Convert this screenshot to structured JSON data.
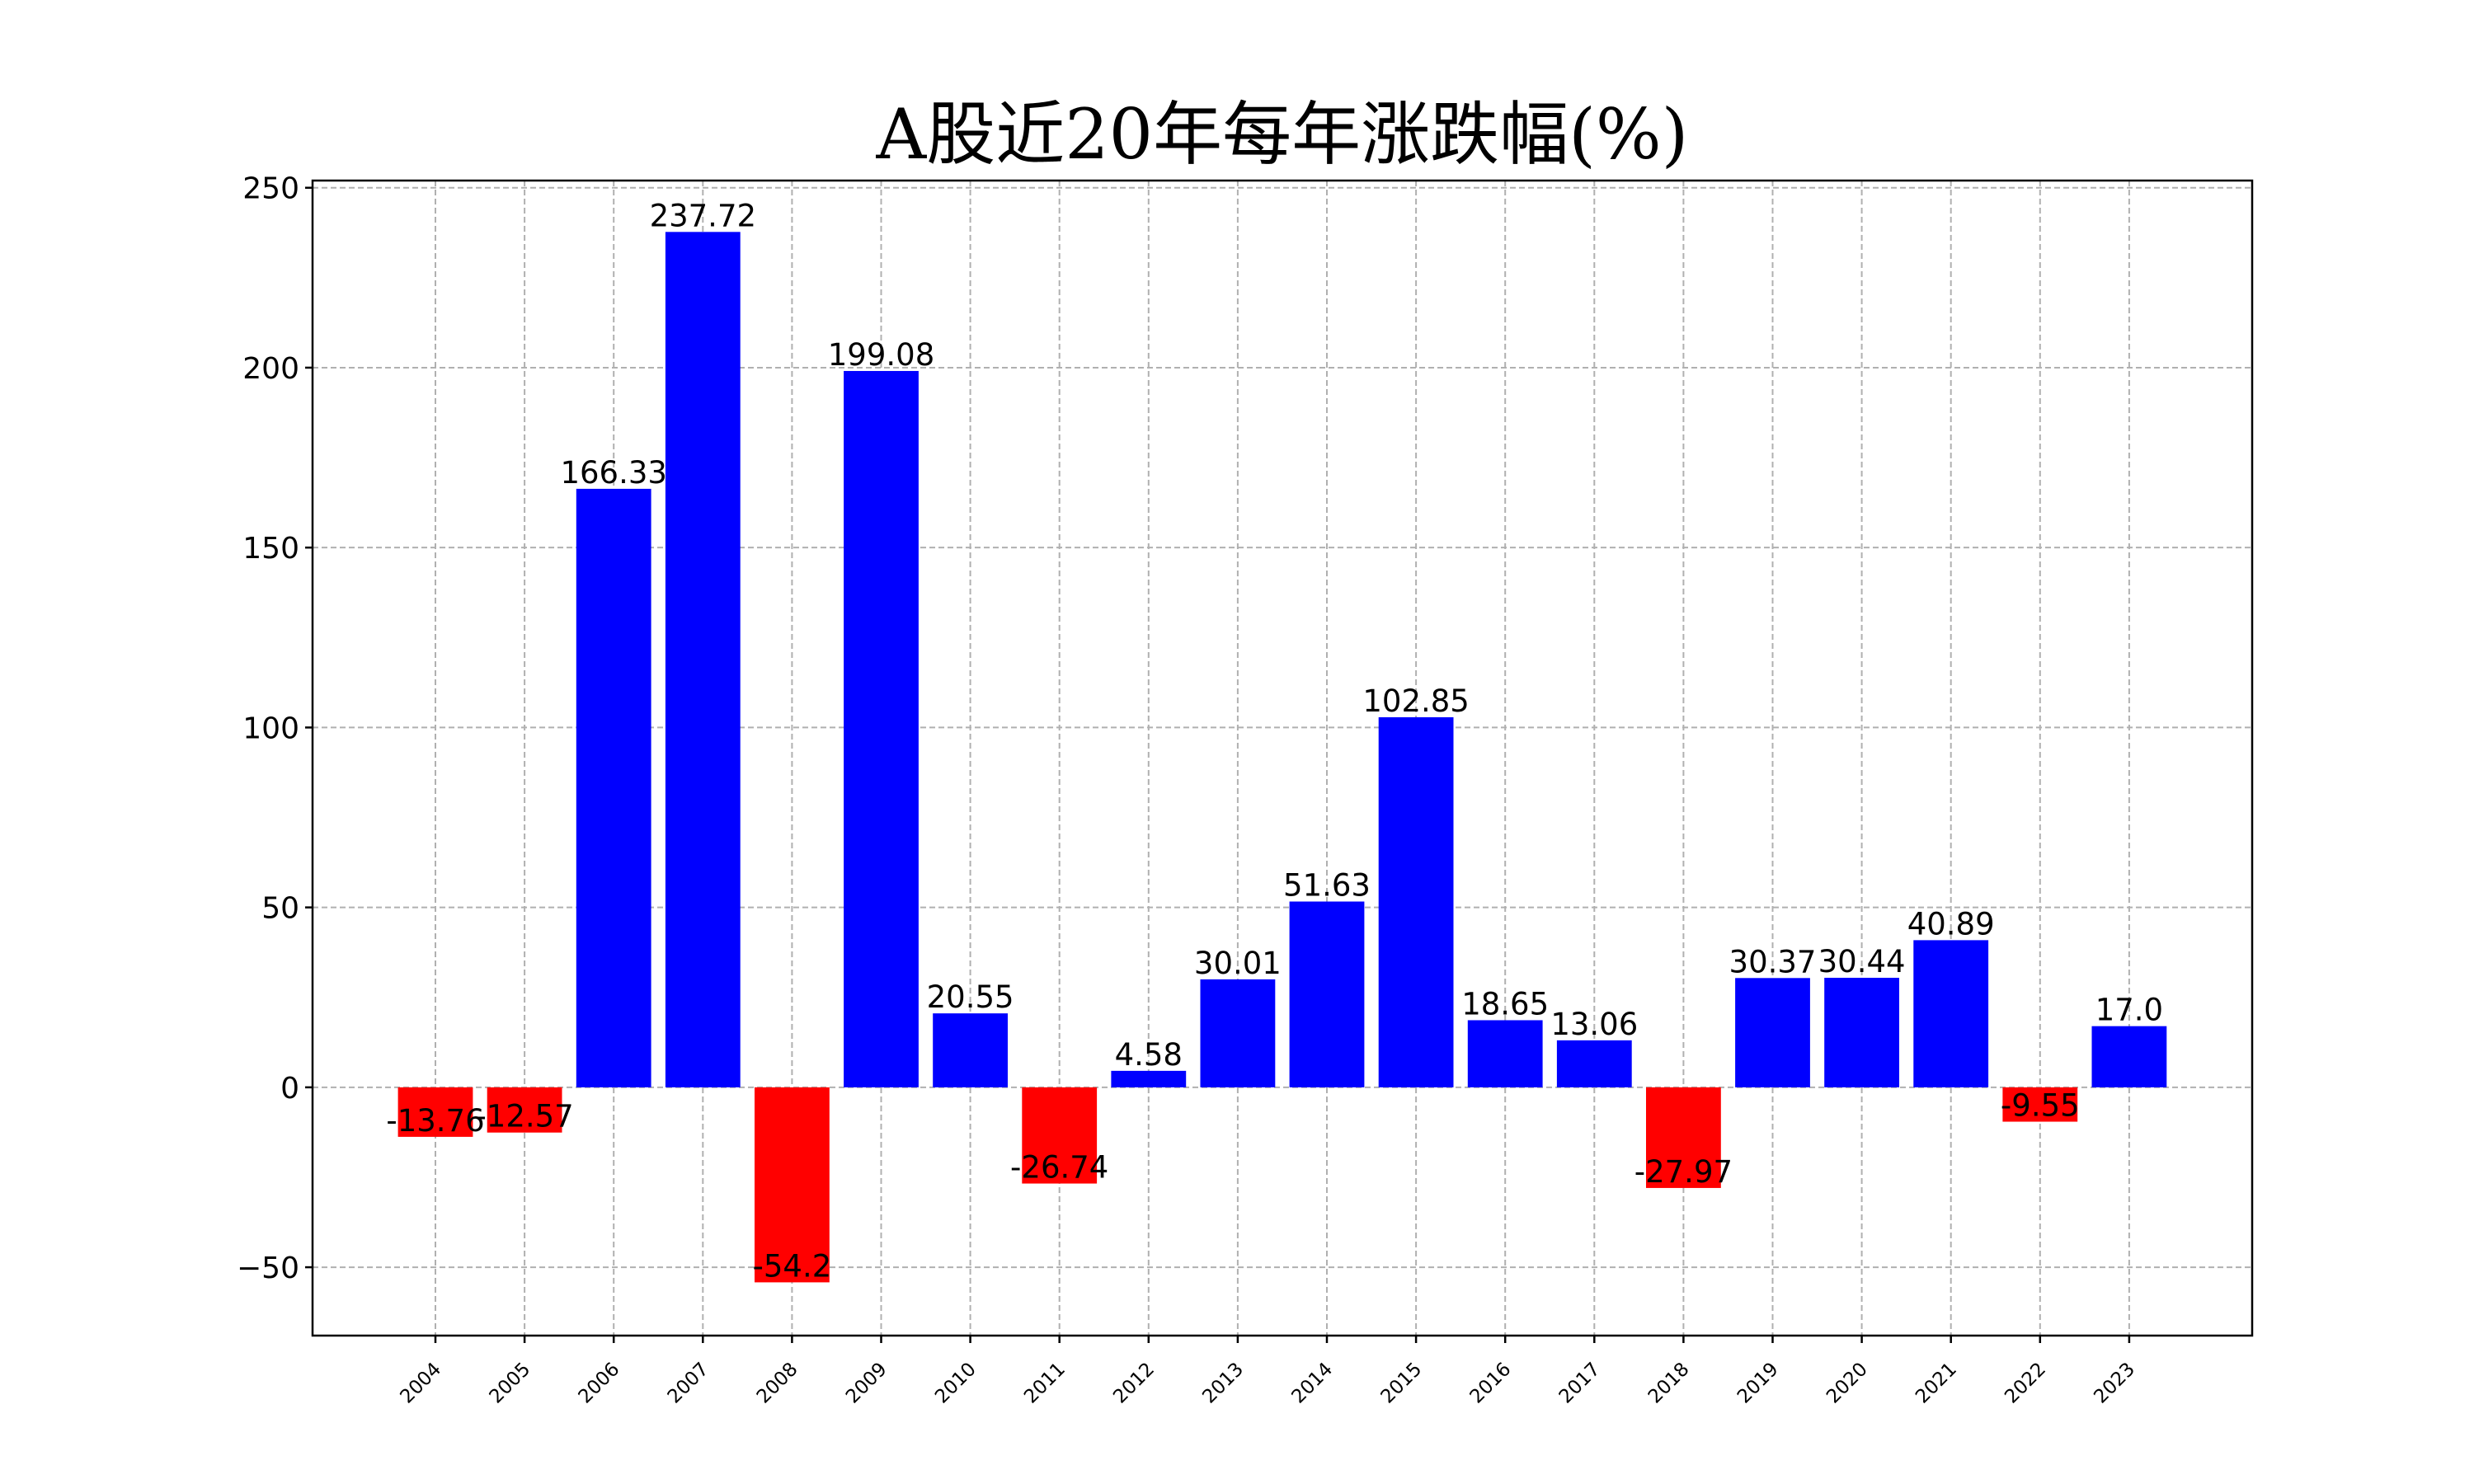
{
  "chart_data": {
    "type": "bar",
    "title": "A股近20年每年涨跌幅(%)",
    "xlabel": "",
    "ylabel": "",
    "categories": [
      "2004",
      "2005",
      "2006",
      "2007",
      "2008",
      "2009",
      "2010",
      "2011",
      "2012",
      "2013",
      "2014",
      "2015",
      "2016",
      "2017",
      "2018",
      "2019",
      "2020",
      "2021",
      "2022",
      "2023"
    ],
    "values": [
      -13.76,
      -12.57,
      166.33,
      237.72,
      -54.2,
      199.08,
      20.55,
      -26.74,
      4.58,
      30.01,
      51.63,
      102.85,
      18.65,
      13.06,
      -27.97,
      30.37,
      30.44,
      40.89,
      -9.55,
      17.0
    ],
    "value_labels": [
      "-13.76",
      "-12.57",
      "166.33",
      "237.72",
      "-54.2",
      "199.08",
      "20.55",
      "-26.74",
      "4.58",
      "30.01",
      "51.63",
      "102.85",
      "18.65",
      "13.06",
      "-27.97",
      "30.37",
      "30.44",
      "40.89",
      "-9.55",
      "17.0"
    ],
    "yticks": [
      -50,
      0,
      50,
      100,
      150,
      200,
      250
    ],
    "ytick_labels": [
      "−50",
      "0",
      "50",
      "100",
      "150",
      "200",
      "250"
    ],
    "ylim": [
      -69,
      252
    ],
    "grid": true,
    "colors": {
      "positive": "#0000ff",
      "negative": "#ff0000",
      "grid": "#b0b0b0"
    }
  }
}
